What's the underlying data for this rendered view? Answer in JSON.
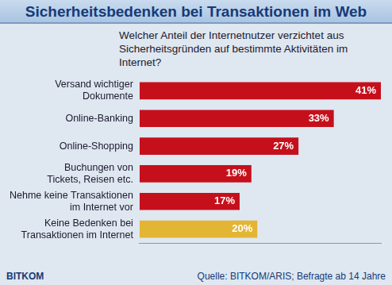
{
  "chart_data": {
    "type": "bar",
    "orientation": "horizontal",
    "title": "Sicherheitsbedenken bei Transaktionen im Web",
    "subtitle": "Welcher Anteil der Internetnutzer verzichtet aus Sicherheitsgründen auf bestimmte Aktivitäten im Internet?",
    "categories": [
      [
        "Versand wichtiger",
        "Dokumente"
      ],
      "Online-Banking",
      "Online-Shopping",
      [
        "Buchungen von",
        "Tickets, Reisen etc."
      ],
      [
        "Nehme keine Transaktionen",
        "im Internet vor"
      ],
      [
        "Keine Bedenken bei",
        "Transaktionen im Internet"
      ]
    ],
    "values": [
      41,
      33,
      27,
      19,
      17,
      20
    ],
    "value_labels": [
      "41%",
      "33%",
      "27%",
      "19%",
      "17%",
      "20%"
    ],
    "colors": [
      "#c5101c",
      "#c5101c",
      "#c5101c",
      "#c5101c",
      "#c5101c",
      "#e3b534"
    ],
    "xlim": [
      0,
      41
    ],
    "grid": false,
    "data_labels": true,
    "tick_labels": "y",
    "source": "Quelle: BITKOM/ARIS; Befragte ab 14 Jahre",
    "logo": "BITKOM"
  }
}
